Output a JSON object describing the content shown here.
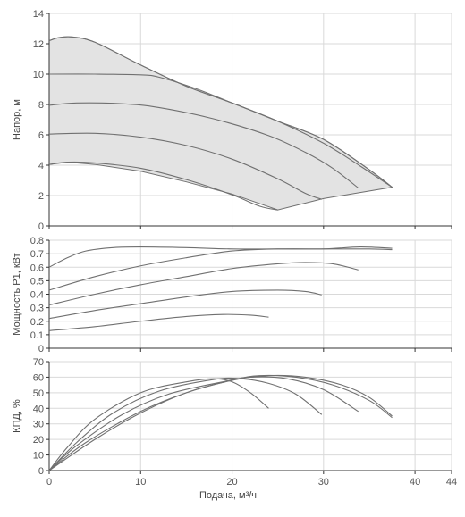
{
  "chart_data": [
    {
      "type": "line",
      "ylabel": "Напор, м",
      "xlim": [
        0,
        44
      ],
      "ylim": [
        0,
        14
      ],
      "xticks": [
        0,
        10,
        20,
        30,
        40,
        44
      ],
      "yticks": [
        0,
        2,
        4,
        6,
        8,
        10,
        12,
        14
      ],
      "ytick_labels": [
        "0",
        "2",
        "4",
        "6",
        "8",
        "10",
        "12",
        "14"
      ],
      "grid": true,
      "shaded_region_color": "#e3e3e3",
      "line_color": "#707070",
      "region": {
        "upper_boundary": [
          [
            0,
            12.2
          ],
          [
            1,
            12.4
          ],
          [
            2.5,
            12.45
          ],
          [
            5,
            12.1
          ],
          [
            10,
            10.6
          ],
          [
            15,
            9.2
          ],
          [
            20,
            8.1
          ],
          [
            25,
            6.9
          ],
          [
            30,
            5.7
          ],
          [
            35,
            3.7
          ],
          [
            37.5,
            2.55
          ]
        ],
        "lower_boundary": [
          [
            37.5,
            2.55
          ],
          [
            30,
            1.8
          ],
          [
            25,
            1.05
          ],
          [
            20,
            2.1
          ],
          [
            15,
            2.9
          ],
          [
            10,
            3.6
          ],
          [
            5,
            4.05
          ],
          [
            2,
            4.2
          ],
          [
            0,
            4.05
          ]
        ]
      },
      "series": [
        {
          "points": [
            [
              0,
              4.05
            ],
            [
              2,
              4.2
            ],
            [
              5,
              4.15
            ],
            [
              10,
              3.8
            ],
            [
              15,
              3.05
            ],
            [
              20,
              2.05
            ],
            [
              23,
              1.3
            ],
            [
              25,
              1.05
            ]
          ]
        },
        {
          "points": [
            [
              0,
              6.05
            ],
            [
              5,
              6.1
            ],
            [
              10,
              5.85
            ],
            [
              15,
              5.3
            ],
            [
              20,
              4.4
            ],
            [
              25,
              3.1
            ],
            [
              28,
              2.15
            ],
            [
              29.8,
              1.75
            ]
          ]
        },
        {
          "points": [
            [
              0,
              7.95
            ],
            [
              3,
              8.1
            ],
            [
              8,
              8.05
            ],
            [
              12,
              7.8
            ],
            [
              18,
              7.05
            ],
            [
              24,
              5.95
            ],
            [
              28,
              4.85
            ],
            [
              31,
              3.8
            ],
            [
              33.8,
              2.5
            ]
          ]
        },
        {
          "points": [
            [
              0,
              10.0
            ],
            [
              5,
              10.0
            ],
            [
              10,
              9.95
            ],
            [
              12,
              9.8
            ],
            [
              16,
              9.05
            ],
            [
              20,
              8.1
            ],
            [
              25,
              6.9
            ],
            [
              30,
              5.45
            ],
            [
              34,
              3.95
            ],
            [
              37.5,
              2.55
            ]
          ]
        },
        {
          "points": [
            [
              0,
              12.2
            ],
            [
              1,
              12.4
            ],
            [
              2.5,
              12.45
            ],
            [
              5,
              12.1
            ],
            [
              10,
              10.6
            ],
            [
              15,
              9.2
            ],
            [
              20,
              8.1
            ],
            [
              25,
              6.9
            ],
            [
              30,
              5.7
            ],
            [
              35,
              3.7
            ],
            [
              37.5,
              2.55
            ]
          ]
        }
      ]
    },
    {
      "type": "line",
      "ylabel": "Мощность P1, кВт",
      "xlim": [
        0,
        44
      ],
      "ylim": [
        0,
        0.8
      ],
      "xticks": [
        0,
        10,
        20,
        30,
        40,
        44
      ],
      "yticks": [
        0,
        0.1,
        0.2,
        0.3,
        0.4,
        0.5,
        0.6,
        0.7,
        0.8
      ],
      "ytick_labels": [
        "0",
        "0.1",
        "0.2",
        "0.3",
        "0.4",
        "0.5",
        "0.6",
        "0.7",
        "0.8"
      ],
      "grid": true,
      "line_color": "#707070",
      "series": [
        {
          "points": [
            [
              0,
              0.13
            ],
            [
              5,
              0.16
            ],
            [
              10,
              0.2
            ],
            [
              15,
              0.235
            ],
            [
              19,
              0.25
            ],
            [
              22,
              0.245
            ],
            [
              24,
              0.23
            ]
          ]
        },
        {
          "points": [
            [
              0,
              0.22
            ],
            [
              5,
              0.28
            ],
            [
              10,
              0.33
            ],
            [
              15,
              0.38
            ],
            [
              20,
              0.42
            ],
            [
              25,
              0.43
            ],
            [
              28,
              0.42
            ],
            [
              29.8,
              0.395
            ]
          ]
        },
        {
          "points": [
            [
              0,
              0.32
            ],
            [
              5,
              0.4
            ],
            [
              10,
              0.47
            ],
            [
              15,
              0.53
            ],
            [
              20,
              0.59
            ],
            [
              25,
              0.625
            ],
            [
              28,
              0.635
            ],
            [
              31,
              0.625
            ],
            [
              33.8,
              0.58
            ]
          ]
        },
        {
          "points": [
            [
              0,
              0.43
            ],
            [
              5,
              0.53
            ],
            [
              10,
              0.61
            ],
            [
              15,
              0.67
            ],
            [
              20,
              0.72
            ],
            [
              25,
              0.735
            ],
            [
              30,
              0.735
            ],
            [
              35,
              0.735
            ],
            [
              37.5,
              0.73
            ]
          ]
        },
        {
          "points": [
            [
              0,
              0.6
            ],
            [
              2,
              0.67
            ],
            [
              4,
              0.72
            ],
            [
              7,
              0.745
            ],
            [
              10,
              0.75
            ],
            [
              15,
              0.745
            ],
            [
              20,
              0.735
            ],
            [
              25,
              0.735
            ],
            [
              30,
              0.735
            ],
            [
              34,
              0.75
            ],
            [
              37.5,
              0.74
            ]
          ]
        }
      ]
    },
    {
      "type": "line",
      "ylabel": "КПД, %",
      "xlabel": "Подача, м³/ч",
      "xlim": [
        0,
        44
      ],
      "ylim": [
        0,
        70
      ],
      "xticks": [
        0,
        10,
        20,
        30,
        40,
        44
      ],
      "xtick_labels": [
        "0",
        "10",
        "20",
        "30",
        "40",
        "44"
      ],
      "yticks": [
        0,
        10,
        20,
        30,
        40,
        50,
        60,
        70
      ],
      "ytick_labels": [
        "0",
        "10",
        "20",
        "30",
        "40",
        "50",
        "60",
        "70"
      ],
      "grid": true,
      "line_color": "#707070",
      "series": [
        {
          "points": [
            [
              0,
              0
            ],
            [
              2,
              15
            ],
            [
              5,
              33
            ],
            [
              10,
              50
            ],
            [
              15,
              57
            ],
            [
              18,
              59
            ],
            [
              20,
              57
            ],
            [
              22,
              50
            ],
            [
              24,
              40
            ]
          ]
        },
        {
          "points": [
            [
              0,
              0
            ],
            [
              3,
              18
            ],
            [
              7,
              37
            ],
            [
              12,
              51
            ],
            [
              18,
              58.5
            ],
            [
              21,
              59
            ],
            [
              24,
              56
            ],
            [
              27,
              49
            ],
            [
              29.8,
              36
            ]
          ]
        },
        {
          "points": [
            [
              0,
              0
            ],
            [
              3,
              16
            ],
            [
              8,
              36
            ],
            [
              13,
              49
            ],
            [
              19,
              57
            ],
            [
              22,
              60
            ],
            [
              26,
              59
            ],
            [
              30,
              52
            ],
            [
              33.8,
              38
            ]
          ]
        },
        {
          "points": [
            [
              0,
              0
            ],
            [
              4,
              18
            ],
            [
              10,
              38
            ],
            [
              15,
              50
            ],
            [
              20,
              58
            ],
            [
              23,
              61
            ],
            [
              27,
              60
            ],
            [
              31,
              55
            ],
            [
              35,
              45
            ],
            [
              37.5,
              34
            ]
          ]
        },
        {
          "points": [
            [
              0,
              0
            ],
            [
              5,
              20
            ],
            [
              10,
              37
            ],
            [
              15,
              50
            ],
            [
              20,
              58
            ],
            [
              24,
              61
            ],
            [
              28,
              60
            ],
            [
              32,
              55
            ],
            [
              35,
              47
            ],
            [
              37.5,
              35
            ]
          ]
        }
      ]
    }
  ]
}
